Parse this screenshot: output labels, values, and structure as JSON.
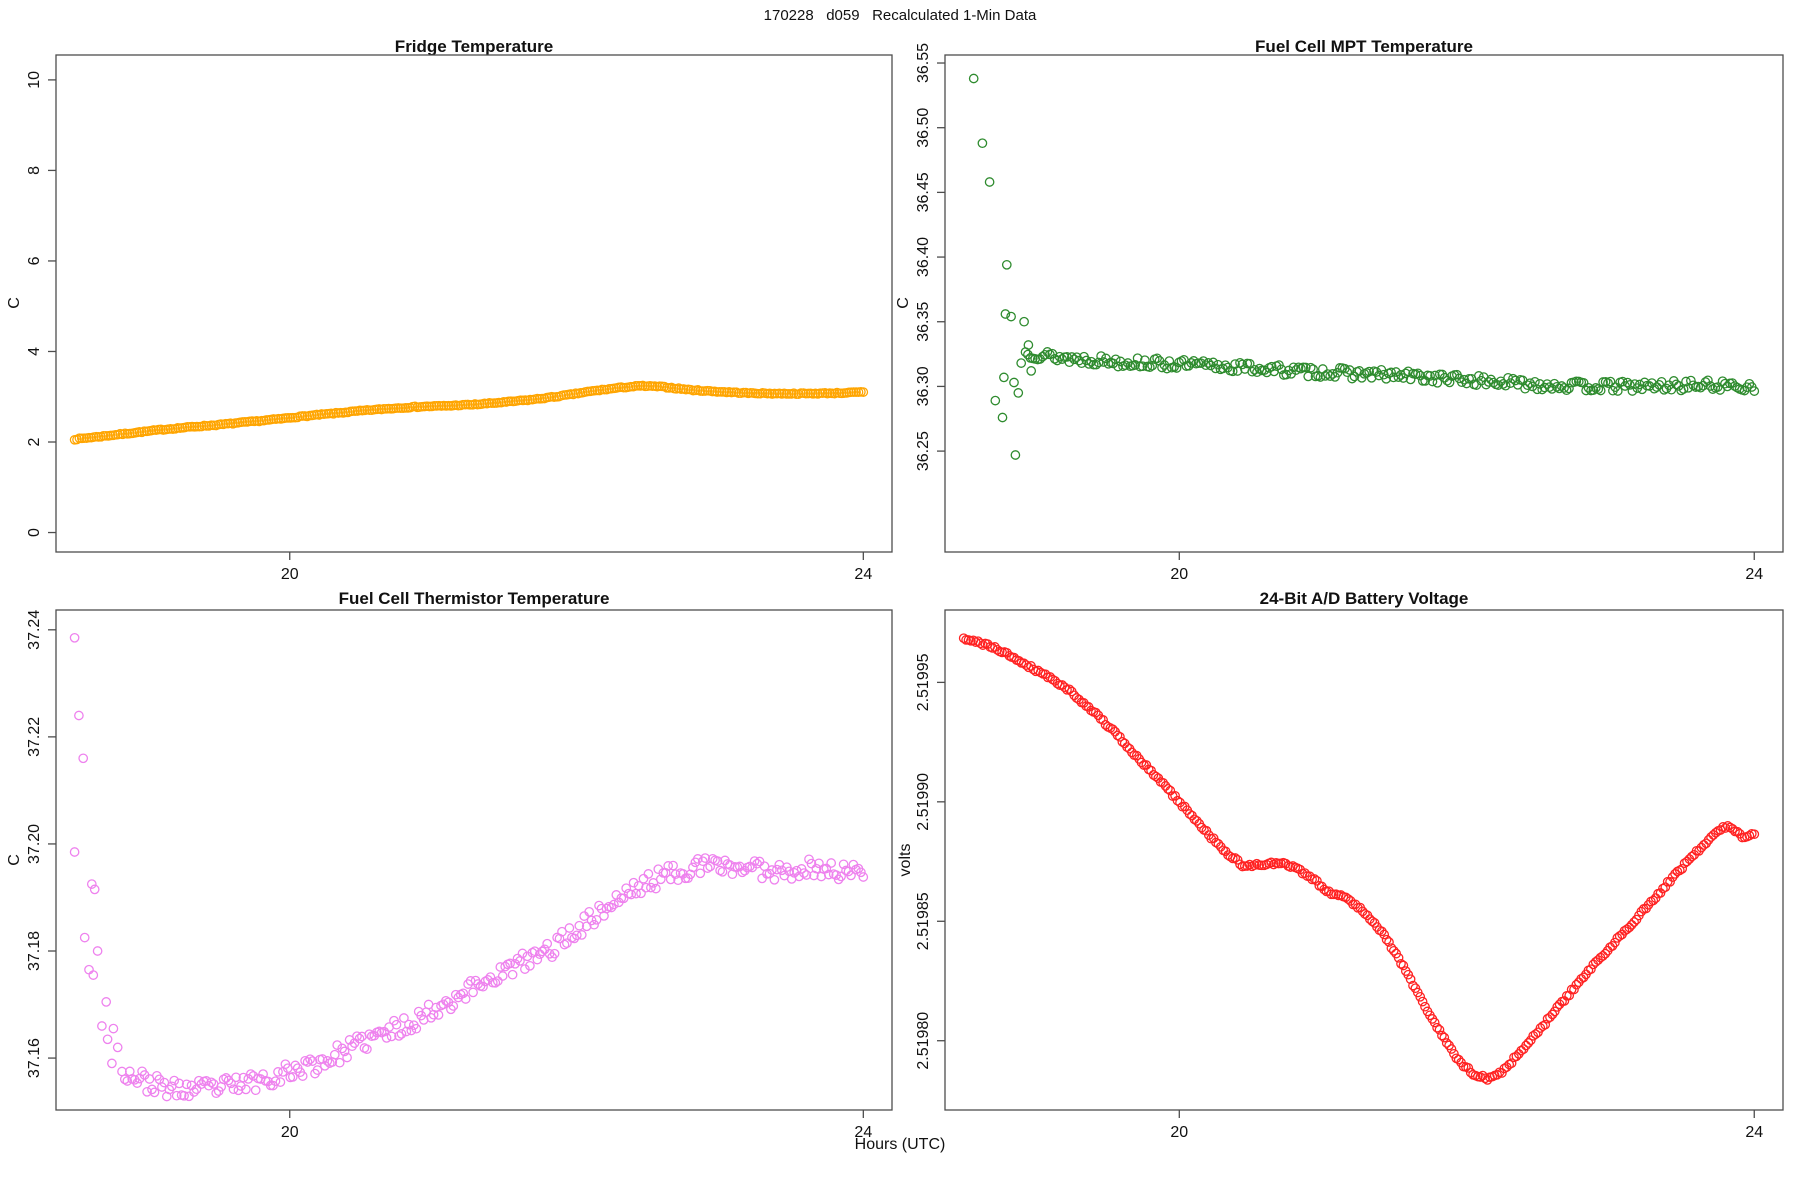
{
  "page": {
    "main_title": "170228   d059   Recalculated 1-Min Data",
    "x_axis_label": "Hours (UTC)",
    "background_color": "#ffffff",
    "axis_line_color": "#4d4d4d",
    "text_color": "#111111"
  },
  "chart_data": [
    {
      "id": "fridge-temperature",
      "type": "scatter",
      "title": "Fridge Temperature",
      "ylabel": "C",
      "marker": "open-circle",
      "color": "#FFA500",
      "xlim": [
        18.37,
        24.2
      ],
      "ylim": [
        -0.43,
        10.55
      ],
      "x_ticks": [
        20,
        24
      ],
      "x_tick_labels": [
        "20",
        "24"
      ],
      "y_ticks": [
        0,
        2,
        4,
        6,
        8,
        10
      ],
      "y_tick_labels": [
        "0",
        "2",
        "4",
        "6",
        "8",
        "10"
      ],
      "n_points": 330,
      "x_range": [
        18.5,
        24.0
      ],
      "noise": 0.012,
      "seed": 7,
      "anchors": [
        [
          18.5,
          2.06
        ],
        [
          18.7,
          2.13
        ],
        [
          18.9,
          2.2
        ],
        [
          19.1,
          2.27
        ],
        [
          19.3,
          2.33
        ],
        [
          19.5,
          2.38
        ],
        [
          19.7,
          2.44
        ],
        [
          19.9,
          2.5
        ],
        [
          20.1,
          2.57
        ],
        [
          20.3,
          2.63
        ],
        [
          20.5,
          2.69
        ],
        [
          20.7,
          2.74
        ],
        [
          20.9,
          2.78
        ],
        [
          21.1,
          2.8
        ],
        [
          21.3,
          2.83
        ],
        [
          21.5,
          2.88
        ],
        [
          21.7,
          2.94
        ],
        [
          21.9,
          3.02
        ],
        [
          22.1,
          3.12
        ],
        [
          22.3,
          3.2
        ],
        [
          22.45,
          3.24
        ],
        [
          22.6,
          3.22
        ],
        [
          22.8,
          3.15
        ],
        [
          23.0,
          3.11
        ],
        [
          23.2,
          3.08
        ],
        [
          23.4,
          3.07
        ],
        [
          23.6,
          3.07
        ],
        [
          23.8,
          3.08
        ],
        [
          24.0,
          3.1
        ]
      ],
      "outliers": []
    },
    {
      "id": "fuel-cell-mpt-temperature",
      "type": "scatter",
      "title": "Fuel Cell MPT Temperature",
      "ylabel": "C",
      "marker": "open-circle",
      "color": "#2E8B2E",
      "xlim": [
        18.37,
        24.2
      ],
      "ylim": [
        36.172,
        36.5562
      ],
      "x_ticks": [
        20,
        24
      ],
      "x_tick_labels": [
        "20",
        "24"
      ],
      "y_ticks": [
        36.25,
        36.3,
        36.35,
        36.4,
        36.45,
        36.5,
        36.55
      ],
      "y_tick_labels": [
        "36.25",
        "36.30",
        "36.35",
        "36.40",
        "36.45",
        "36.50",
        "36.55"
      ],
      "n_points": 300,
      "x_range": [
        18.93,
        24.0
      ],
      "noise": 0.004,
      "seed": 13,
      "anchors": [
        [
          18.93,
          36.326
        ],
        [
          19.2,
          36.322
        ],
        [
          19.6,
          36.319
        ],
        [
          20.0,
          36.317
        ],
        [
          20.4,
          36.315
        ],
        [
          20.8,
          36.312
        ],
        [
          21.2,
          36.31
        ],
        [
          21.6,
          36.308
        ],
        [
          22.0,
          36.305
        ],
        [
          22.4,
          36.302
        ],
        [
          22.8,
          36.3
        ],
        [
          23.2,
          36.3
        ],
        [
          23.6,
          36.301
        ],
        [
          24.0,
          36.3
        ]
      ],
      "outliers": [
        [
          18.57,
          36.538
        ],
        [
          18.63,
          36.488
        ],
        [
          18.68,
          36.458
        ],
        [
          18.8,
          36.394
        ],
        [
          18.79,
          36.356
        ],
        [
          18.83,
          36.354
        ],
        [
          18.92,
          36.35
        ],
        [
          18.78,
          36.307
        ],
        [
          18.85,
          36.303
        ],
        [
          18.88,
          36.295
        ],
        [
          18.72,
          36.289
        ],
        [
          18.77,
          36.276
        ],
        [
          18.86,
          36.247
        ],
        [
          18.95,
          36.332
        ],
        [
          18.9,
          36.318
        ],
        [
          18.97,
          36.312
        ]
      ]
    },
    {
      "id": "fuel-cell-thermistor-temperature",
      "type": "scatter",
      "title": "Fuel Cell Thermistor Temperature",
      "ylabel": "C",
      "marker": "open-circle",
      "color": "#EE82EE",
      "xlim": [
        18.37,
        24.2
      ],
      "ylim": [
        37.1503,
        37.2437
      ],
      "x_ticks": [
        20,
        24
      ],
      "x_tick_labels": [
        "20",
        "24"
      ],
      "y_ticks": [
        37.16,
        37.18,
        37.2,
        37.22,
        37.24
      ],
      "y_tick_labels": [
        "37.16",
        "37.18",
        "37.20",
        "37.22",
        "37.24"
      ],
      "n_points": 300,
      "x_range": [
        18.85,
        24.0
      ],
      "noise": 0.0018,
      "seed": 23,
      "anchors": [
        [
          18.85,
          37.1575
        ],
        [
          19.0,
          37.1555
        ],
        [
          19.2,
          37.154
        ],
        [
          19.4,
          37.1542
        ],
        [
          19.6,
          37.1548
        ],
        [
          19.8,
          37.156
        ],
        [
          20.0,
          37.1575
        ],
        [
          20.2,
          37.159
        ],
        [
          20.4,
          37.1615
        ],
        [
          20.6,
          37.164
        ],
        [
          20.8,
          37.166
        ],
        [
          21.0,
          37.169
        ],
        [
          21.2,
          37.172
        ],
        [
          21.4,
          37.175
        ],
        [
          21.6,
          37.1775
        ],
        [
          21.8,
          37.18
        ],
        [
          22.0,
          37.184
        ],
        [
          22.2,
          37.188
        ],
        [
          22.4,
          37.1915
        ],
        [
          22.6,
          37.194
        ],
        [
          22.8,
          37.1955
        ],
        [
          23.0,
          37.196
        ],
        [
          23.2,
          37.1955
        ],
        [
          23.4,
          37.195
        ],
        [
          23.6,
          37.1955
        ],
        [
          23.8,
          37.195
        ],
        [
          24.0,
          37.1945
        ]
      ],
      "outliers": [
        [
          18.5,
          37.2385
        ],
        [
          18.53,
          37.224
        ],
        [
          18.56,
          37.216
        ],
        [
          18.5,
          37.1985
        ],
        [
          18.62,
          37.1925
        ],
        [
          18.64,
          37.1915
        ],
        [
          18.57,
          37.1825
        ],
        [
          18.66,
          37.18
        ],
        [
          18.6,
          37.1765
        ],
        [
          18.63,
          37.1755
        ],
        [
          18.72,
          37.1705
        ],
        [
          18.69,
          37.166
        ],
        [
          18.73,
          37.1635
        ],
        [
          18.77,
          37.1655
        ],
        [
          18.8,
          37.162
        ],
        [
          18.76,
          37.159
        ],
        [
          18.83,
          37.1575
        ]
      ]
    },
    {
      "id": "battery-voltage",
      "type": "scatter",
      "title": "24-Bit A/D Battery Voltage",
      "ylabel": "volts",
      "marker": "open-circle",
      "color": "#FF2222",
      "xlim": [
        18.37,
        24.2
      ],
      "ylim": [
        2.519771,
        2.5199803
      ],
      "x_ticks": [
        20,
        24
      ],
      "x_tick_labels": [
        "20",
        "24"
      ],
      "y_ticks": [
        2.5198,
        2.51985,
        2.5199,
        2.51995
      ],
      "y_tick_labels": [
        "2.51980",
        "2.51985",
        "2.51990",
        "2.51995"
      ],
      "n_points": 330,
      "x_range": [
        18.5,
        24.0
      ],
      "noise": 7e-07,
      "seed": 41,
      "anchors": [
        [
          18.5,
          2.519968
        ],
        [
          18.65,
          2.519966
        ],
        [
          18.8,
          2.519962
        ],
        [
          18.95,
          2.519957
        ],
        [
          19.1,
          2.519952
        ],
        [
          19.25,
          2.519946
        ],
        [
          19.4,
          2.519938
        ],
        [
          19.55,
          2.519929
        ],
        [
          19.7,
          2.519919
        ],
        [
          19.85,
          2.51991
        ],
        [
          20.0,
          2.5199
        ],
        [
          20.15,
          2.51989
        ],
        [
          20.3,
          2.51988
        ],
        [
          20.45,
          2.519873
        ],
        [
          20.6,
          2.519874
        ],
        [
          20.75,
          2.519874
        ],
        [
          20.9,
          2.519869
        ],
        [
          21.05,
          2.519862
        ],
        [
          21.15,
          2.51986
        ],
        [
          21.25,
          2.519856
        ],
        [
          21.35,
          2.51985
        ],
        [
          21.45,
          2.519842
        ],
        [
          21.55,
          2.519832
        ],
        [
          21.65,
          2.519821
        ],
        [
          21.75,
          2.51981
        ],
        [
          21.85,
          2.5198
        ],
        [
          21.95,
          2.519791
        ],
        [
          22.05,
          2.519786
        ],
        [
          22.15,
          2.519784
        ],
        [
          22.25,
          2.519787
        ],
        [
          22.35,
          2.519794
        ],
        [
          22.5,
          2.519804
        ],
        [
          22.65,
          2.519815
        ],
        [
          22.8,
          2.519826
        ],
        [
          22.95,
          2.519836
        ],
        [
          23.1,
          2.519846
        ],
        [
          23.25,
          2.519856
        ],
        [
          23.4,
          2.519866
        ],
        [
          23.55,
          2.519876
        ],
        [
          23.65,
          2.519882
        ],
        [
          23.75,
          2.519888
        ],
        [
          23.82,
          2.51989
        ],
        [
          23.88,
          2.519887
        ],
        [
          23.93,
          2.519885
        ],
        [
          24.0,
          2.519887
        ]
      ],
      "outliers": []
    }
  ]
}
